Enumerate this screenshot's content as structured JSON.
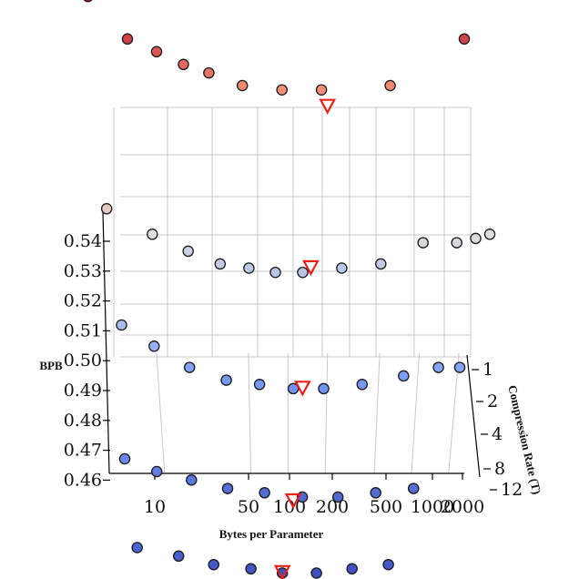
{
  "chart_data": {
    "type": "scatter",
    "projection": "3d",
    "title": "",
    "xlabel": "Bytes per Parameter",
    "ylabel": "BPB",
    "zlabel": "Compression Rate (T)",
    "x_scale": "log",
    "x_ticks": [
      "10",
      "50",
      "100",
      "200",
      "500",
      "1000",
      "2000"
    ],
    "y_ticks": [
      "0.46",
      "0.47",
      "0.48",
      "0.49",
      "0.50",
      "0.51",
      "0.52",
      "0.53",
      "0.54"
    ],
    "z_ticks": [
      "1",
      "2",
      "4",
      "8",
      "12"
    ],
    "colormap": "coolwarm (by BPB)",
    "grid": true,
    "series": [
      {
        "compression_rate": 1,
        "points": [
          {
            "bytes_per_param": 3,
            "bpb": 0.572
          },
          {
            "bytes_per_param": 6,
            "bpb": 0.562
          },
          {
            "bytes_per_param": 10,
            "bpb": 0.559
          },
          {
            "bytes_per_param": 16,
            "bpb": 0.556
          },
          {
            "bytes_per_param": 25,
            "bpb": 0.554
          },
          {
            "bytes_per_param": 45,
            "bpb": 0.551
          },
          {
            "bytes_per_param": 90,
            "bpb": 0.55
          },
          {
            "bytes_per_param": 180,
            "bpb": 0.55
          },
          {
            "bytes_per_param": 600,
            "bpb": 0.551
          },
          {
            "bytes_per_param": 2200,
            "bpb": 0.562
          }
        ],
        "optimal": {
          "bytes_per_param": 200,
          "bpb": 0.547
        }
      },
      {
        "compression_rate": 2,
        "points": [
          {
            "bytes_per_param": 4,
            "bpb": 0.531
          },
          {
            "bytes_per_param": 9,
            "bpb": 0.525
          },
          {
            "bytes_per_param": 17,
            "bpb": 0.521
          },
          {
            "bytes_per_param": 30,
            "bpb": 0.518
          },
          {
            "bytes_per_param": 50,
            "bpb": 0.517
          },
          {
            "bytes_per_param": 80,
            "bpb": 0.516
          },
          {
            "bytes_per_param": 130,
            "bpb": 0.516
          },
          {
            "bytes_per_param": 260,
            "bpb": 0.517
          },
          {
            "bytes_per_param": 520,
            "bpb": 0.518
          },
          {
            "bytes_per_param": 1100,
            "bpb": 0.523
          },
          {
            "bytes_per_param": 2000,
            "bpb": 0.523
          },
          {
            "bytes_per_param": 2800,
            "bpb": 0.524
          },
          {
            "bytes_per_param": 3600,
            "bpb": 0.525
          }
        ],
        "optimal": {
          "bytes_per_param": 150,
          "bpb": 0.518
        }
      },
      {
        "compression_rate": 4,
        "points": [
          {
            "bytes_per_param": 5,
            "bpb": 0.513
          },
          {
            "bytes_per_param": 9,
            "bpb": 0.508
          },
          {
            "bytes_per_param": 17,
            "bpb": 0.503
          },
          {
            "bytes_per_param": 33,
            "bpb": 0.5
          },
          {
            "bytes_per_param": 60,
            "bpb": 0.499
          },
          {
            "bytes_per_param": 110,
            "bpb": 0.498
          },
          {
            "bytes_per_param": 190,
            "bpb": 0.498
          },
          {
            "bytes_per_param": 380,
            "bpb": 0.499
          },
          {
            "bytes_per_param": 800,
            "bpb": 0.501
          },
          {
            "bytes_per_param": 1500,
            "bpb": 0.503
          },
          {
            "bytes_per_param": 2200,
            "bpb": 0.503
          }
        ],
        "optimal": {
          "bytes_per_param": 130,
          "bpb": 0.499
        }
      },
      {
        "compression_rate": 8,
        "points": [
          {
            "bytes_per_param": 5,
            "bpb": 0.495
          },
          {
            "bytes_per_param": 9,
            "bpb": 0.492
          },
          {
            "bytes_per_param": 17,
            "bpb": 0.49
          },
          {
            "bytes_per_param": 33,
            "bpb": 0.488
          },
          {
            "bytes_per_param": 65,
            "bpb": 0.487
          },
          {
            "bytes_per_param": 130,
            "bpb": 0.486
          },
          {
            "bytes_per_param": 250,
            "bpb": 0.486
          },
          {
            "bytes_per_param": 500,
            "bpb": 0.487
          },
          {
            "bytes_per_param": 1000,
            "bpb": 0.488
          }
        ],
        "optimal": {
          "bytes_per_param": 110,
          "bpb": 0.486
        }
      },
      {
        "compression_rate": 12,
        "points": [
          {
            "bytes_per_param": 6,
            "bpb": 0.485
          },
          {
            "bytes_per_param": 13,
            "bpb": 0.483
          },
          {
            "bytes_per_param": 25,
            "bpb": 0.481
          },
          {
            "bytes_per_param": 50,
            "bpb": 0.48
          },
          {
            "bytes_per_param": 90,
            "bpb": 0.479
          },
          {
            "bytes_per_param": 170,
            "bpb": 0.479
          },
          {
            "bytes_per_param": 330,
            "bpb": 0.48
          },
          {
            "bytes_per_param": 650,
            "bpb": 0.481
          }
        ],
        "optimal": {
          "bytes_per_param": 90,
          "bpb": 0.48
        }
      }
    ]
  }
}
